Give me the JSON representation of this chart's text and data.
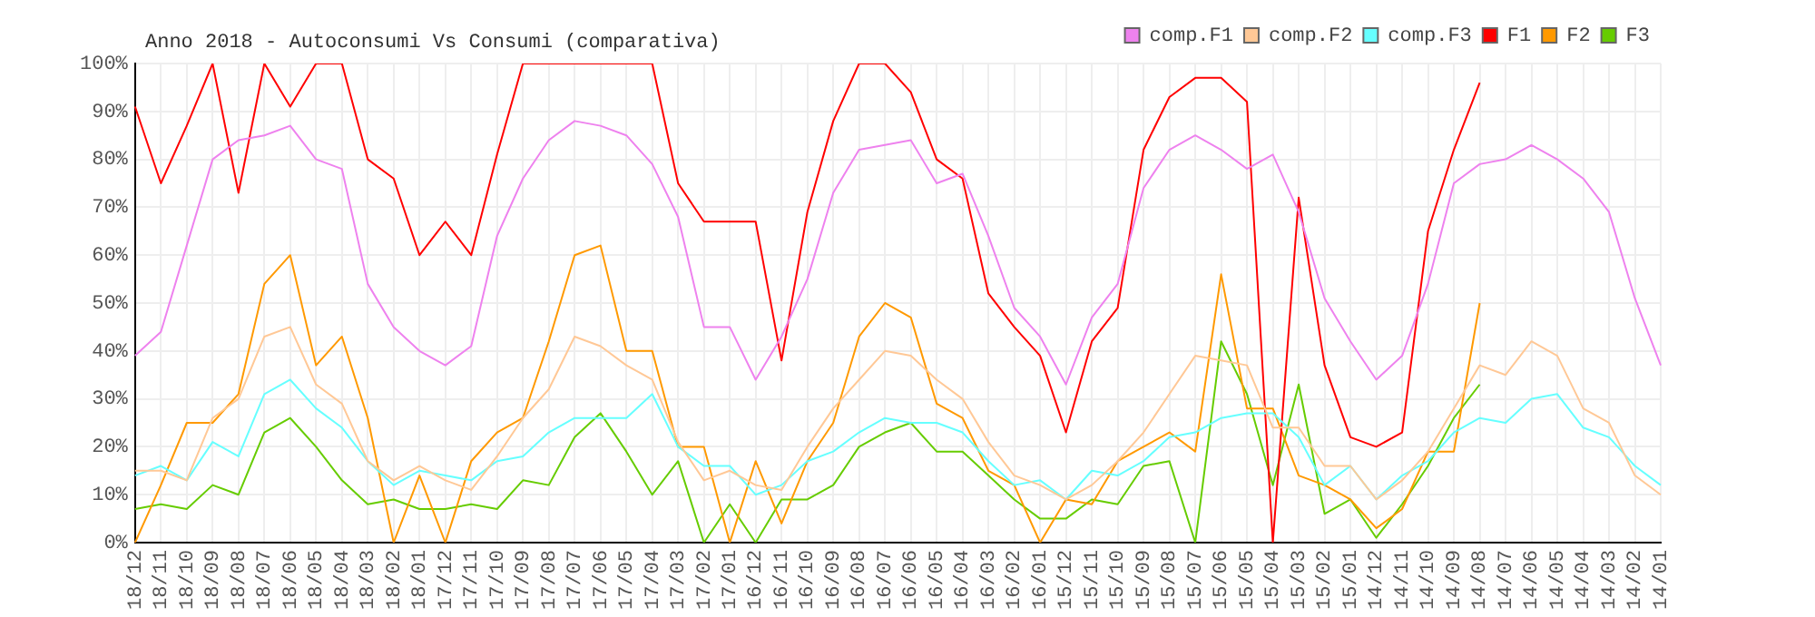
{
  "chart_data": {
    "type": "line",
    "title": "Anno 2018 - Autoconsumi Vs Consumi (comparativa)",
    "categories": [
      "18/12",
      "18/11",
      "18/10",
      "18/09",
      "18/08",
      "18/07",
      "18/06",
      "18/05",
      "18/04",
      "18/03",
      "18/02",
      "18/01",
      "17/12",
      "17/11",
      "17/10",
      "17/09",
      "17/08",
      "17/07",
      "17/06",
      "17/05",
      "17/04",
      "17/03",
      "17/02",
      "17/01",
      "16/12",
      "16/11",
      "16/10",
      "16/09",
      "16/08",
      "16/07",
      "16/06",
      "16/05",
      "16/04",
      "16/03",
      "16/02",
      "16/01",
      "15/12",
      "15/11",
      "15/10",
      "15/09",
      "15/08",
      "15/07",
      "15/06",
      "15/05",
      "15/04",
      "15/03",
      "15/02",
      "15/01",
      "14/12",
      "14/11",
      "14/10",
      "14/09",
      "14/08",
      "14/07",
      "14/06",
      "14/05",
      "14/04",
      "14/03",
      "14/02",
      "14/01"
    ],
    "series": [
      {
        "name": "comp.F1",
        "color": "#ee82ee",
        "values": [
          39,
          44,
          62,
          80,
          84,
          85,
          87,
          80,
          78,
          54,
          45,
          40,
          37,
          41,
          64,
          76,
          84,
          88,
          87,
          85,
          79,
          68,
          45,
          45,
          34,
          43,
          55,
          73,
          82,
          83,
          84,
          75,
          77,
          64,
          49,
          43,
          33,
          47,
          54,
          74,
          82,
          85,
          82,
          78,
          81,
          69,
          51,
          42,
          34,
          39,
          54,
          75,
          79,
          80,
          83,
          80,
          76,
          69,
          51,
          37
        ]
      },
      {
        "name": "comp.F2",
        "color": "#ffc896",
        "values": [
          15,
          15,
          13,
          26,
          30,
          43,
          45,
          33,
          29,
          17,
          13,
          16,
          13,
          11,
          18,
          26,
          32,
          43,
          41,
          37,
          34,
          21,
          13,
          15,
          12,
          11,
          20,
          28,
          34,
          40,
          39,
          34,
          30,
          21,
          14,
          12,
          9,
          12,
          17,
          23,
          31,
          39,
          38,
          37,
          24,
          24,
          16,
          16,
          9,
          13,
          19,
          28,
          37,
          35,
          42,
          39,
          28,
          25,
          14,
          10
        ]
      },
      {
        "name": "comp.F3",
        "color": "#66ffff",
        "values": [
          14,
          16,
          13,
          21,
          18,
          31,
          34,
          28,
          24,
          17,
          12,
          15,
          14,
          13,
          17,
          18,
          23,
          26,
          26,
          26,
          31,
          20,
          16,
          16,
          10,
          12,
          17,
          19,
          23,
          26,
          25,
          25,
          23,
          17,
          12,
          13,
          9,
          15,
          14,
          17,
          22,
          23,
          26,
          27,
          27,
          22,
          12,
          16,
          9,
          14,
          17,
          23,
          26,
          25,
          30,
          31,
          24,
          22,
          16,
          12
        ]
      },
      {
        "name": "F1",
        "color": "#ff0000",
        "values": [
          91,
          75,
          87,
          100,
          73,
          100,
          91,
          100,
          100,
          80,
          76,
          60,
          67,
          60,
          81,
          100,
          100,
          100,
          100,
          100,
          100,
          75,
          67,
          67,
          67,
          38,
          69,
          88,
          100,
          100,
          94,
          80,
          76,
          52,
          45,
          39,
          23,
          42,
          49,
          82,
          93,
          97,
          97,
          92,
          0,
          72,
          37,
          22,
          20,
          23,
          65,
          82,
          96,
          null,
          null,
          null,
          null,
          null,
          null,
          null
        ]
      },
      {
        "name": "F2",
        "color": "#ff9900",
        "values": [
          0,
          12,
          25,
          25,
          31,
          54,
          60,
          37,
          43,
          26,
          0,
          14,
          0,
          17,
          23,
          26,
          42,
          60,
          62,
          40,
          40,
          20,
          20,
          0,
          17,
          4,
          17,
          25,
          43,
          50,
          47,
          29,
          26,
          15,
          12,
          0,
          9,
          8,
          17,
          20,
          23,
          19,
          56,
          28,
          28,
          14,
          12,
          9,
          3,
          7,
          19,
          19,
          50,
          null,
          null,
          null,
          null,
          null,
          null,
          null
        ]
      },
      {
        "name": "F3",
        "color": "#66cc00",
        "values": [
          7,
          8,
          7,
          12,
          10,
          23,
          26,
          20,
          13,
          8,
          9,
          7,
          7,
          8,
          7,
          13,
          12,
          22,
          27,
          19,
          10,
          17,
          0,
          8,
          0,
          9,
          9,
          12,
          20,
          23,
          25,
          19,
          19,
          14,
          9,
          5,
          5,
          9,
          8,
          16,
          17,
          0,
          42,
          31,
          12,
          33,
          6,
          9,
          1,
          8,
          16,
          26,
          33,
          null,
          null,
          null,
          null,
          null,
          null,
          null
        ]
      }
    ],
    "ylim": [
      0,
      100
    ],
    "yticks": [
      {
        "value": 0,
        "label": "0%"
      },
      {
        "value": 10,
        "label": "10%"
      },
      {
        "value": 20,
        "label": "20%"
      },
      {
        "value": 30,
        "label": "30%"
      },
      {
        "value": 40,
        "label": "40%"
      },
      {
        "value": 50,
        "label": "50%"
      },
      {
        "value": 60,
        "label": "60%"
      },
      {
        "value": 70,
        "label": "70%"
      },
      {
        "value": 80,
        "label": "80%"
      },
      {
        "value": 90,
        "label": "90%"
      },
      {
        "value": 100,
        "label": "100%"
      }
    ],
    "grid": true,
    "legend": "top right",
    "marker": "none",
    "line_style": "solid"
  }
}
